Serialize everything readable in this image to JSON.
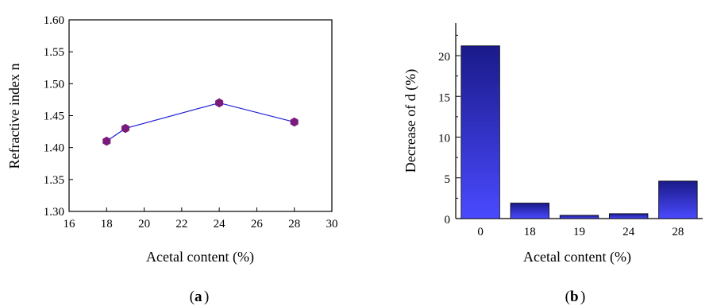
{
  "chart_data": [
    {
      "id": "a",
      "type": "line",
      "panel_label": "a",
      "xlabel": "Acetal content (%)",
      "ylabel": "Refractive index n",
      "xlim": [
        16,
        30
      ],
      "ylim": [
        1.3,
        1.6
      ],
      "xticks": [
        "16",
        "18",
        "20",
        "22",
        "24",
        "26",
        "28",
        "30"
      ],
      "yticks": [
        "1.30",
        "1.35",
        "1.40",
        "1.45",
        "1.50",
        "1.55",
        "1.60"
      ],
      "grid": false,
      "series": [
        {
          "x": [
            18,
            19,
            24,
            28
          ],
          "y": [
            1.41,
            1.43,
            1.47,
            1.44
          ]
        }
      ],
      "line_color": "#1f1fd6",
      "marker_color": "#7a1a7a",
      "marker": "hexagon"
    },
    {
      "id": "b",
      "type": "bar",
      "panel_label": "b",
      "xlabel": "Acetal content (%)",
      "ylabel": "Decrease of d (%)",
      "categories": [
        "0",
        "18",
        "19",
        "24",
        "28"
      ],
      "values": [
        21.2,
        1.9,
        0.4,
        0.6,
        4.6
      ],
      "ylim": [
        0,
        24
      ],
      "yticks": [
        "0",
        "5",
        "10",
        "15",
        "20"
      ],
      "grid": false,
      "bar_gradient": [
        "#1a1a8a",
        "#4a4aff"
      ]
    }
  ]
}
